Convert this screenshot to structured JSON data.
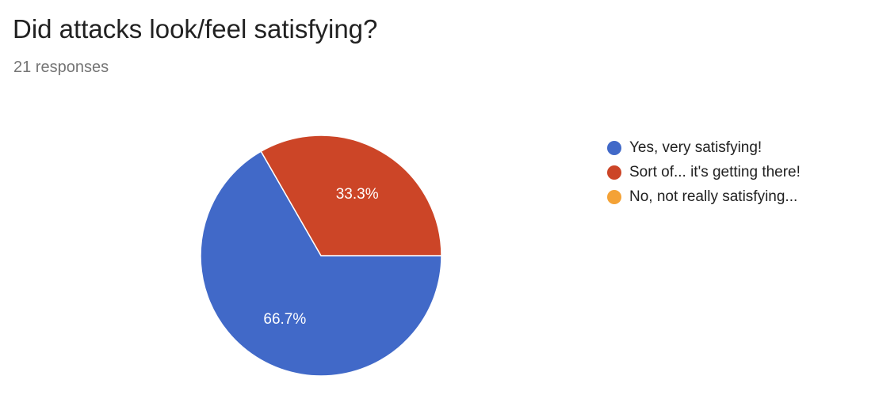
{
  "header": {
    "title": "Did attacks look/feel satisfying?",
    "responses": "21 responses"
  },
  "chart_data": {
    "type": "pie",
    "legend_position": "right",
    "slices": [
      {
        "label": "Yes, very satisfying!",
        "value": 66.7,
        "display": "66.7%",
        "color": "#4169C8"
      },
      {
        "label": "Sort of... it's getting there!",
        "value": 33.3,
        "display": "33.3%",
        "color": "#CC4527"
      },
      {
        "label": "No, not really satisfying...",
        "value": 0,
        "display": "",
        "color": "#F4A236"
      }
    ]
  }
}
